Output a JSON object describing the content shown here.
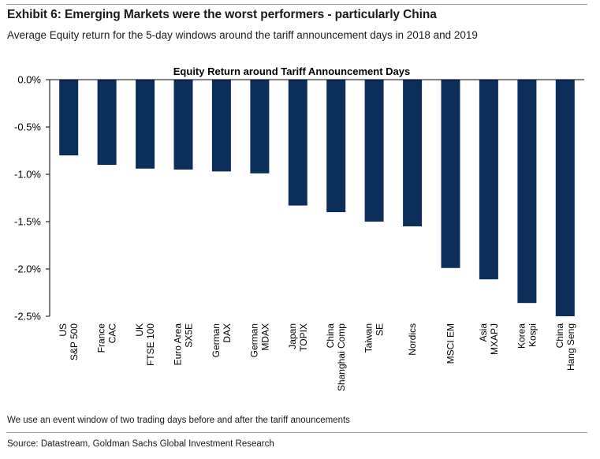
{
  "header": {
    "title": "Exhibit 6: Emerging Markets were the worst performers - particularly China",
    "subtitle": "Average Equity return for the 5-day windows around the tariff announcement days in 2018 and 2019"
  },
  "footer": {
    "note": "We use an event window of two trading days before and after the tariff anouncements",
    "source": "Source: Datastream, Goldman Sachs Global Investment Research"
  },
  "colors": {
    "bar": "#0b2f5a",
    "axis": "#000000"
  },
  "chart_data": {
    "type": "bar",
    "title": "Equity Return around Tariff Announcement Days",
    "xlabel": "",
    "ylabel": "",
    "ylim": [
      -2.5,
      0
    ],
    "yticks": [
      0,
      -0.5,
      -1.0,
      -1.5,
      -2.0,
      -2.5
    ],
    "ytick_labels": [
      "0.0%",
      "-0.5%",
      "-1.0%",
      "-1.5%",
      "-2.0%",
      "-2.5%"
    ],
    "grid": false,
    "legend": "none",
    "categories": [
      [
        "US",
        "S&P 500"
      ],
      [
        "France",
        "CAC"
      ],
      [
        "UK",
        "FTSE 100"
      ],
      [
        "Euro Area",
        "SX5E"
      ],
      [
        "German",
        "DAX"
      ],
      [
        "German",
        "MDAX"
      ],
      [
        "Japan",
        "TOPIX"
      ],
      [
        "China",
        "Shanghai Comp"
      ],
      [
        "Taiwan",
        "SE"
      ],
      [
        "Nordics"
      ],
      [
        "MSCI EM"
      ],
      [
        "Asia",
        "MXAPJ"
      ],
      [
        "Korea",
        "Kospi"
      ],
      [
        "China",
        "Hang Seng"
      ]
    ],
    "values": [
      -0.8,
      -0.9,
      -0.94,
      -0.95,
      -0.97,
      -0.99,
      -1.33,
      -1.4,
      -1.5,
      -1.55,
      -1.99,
      -2.11,
      -2.36,
      -2.5
    ]
  }
}
